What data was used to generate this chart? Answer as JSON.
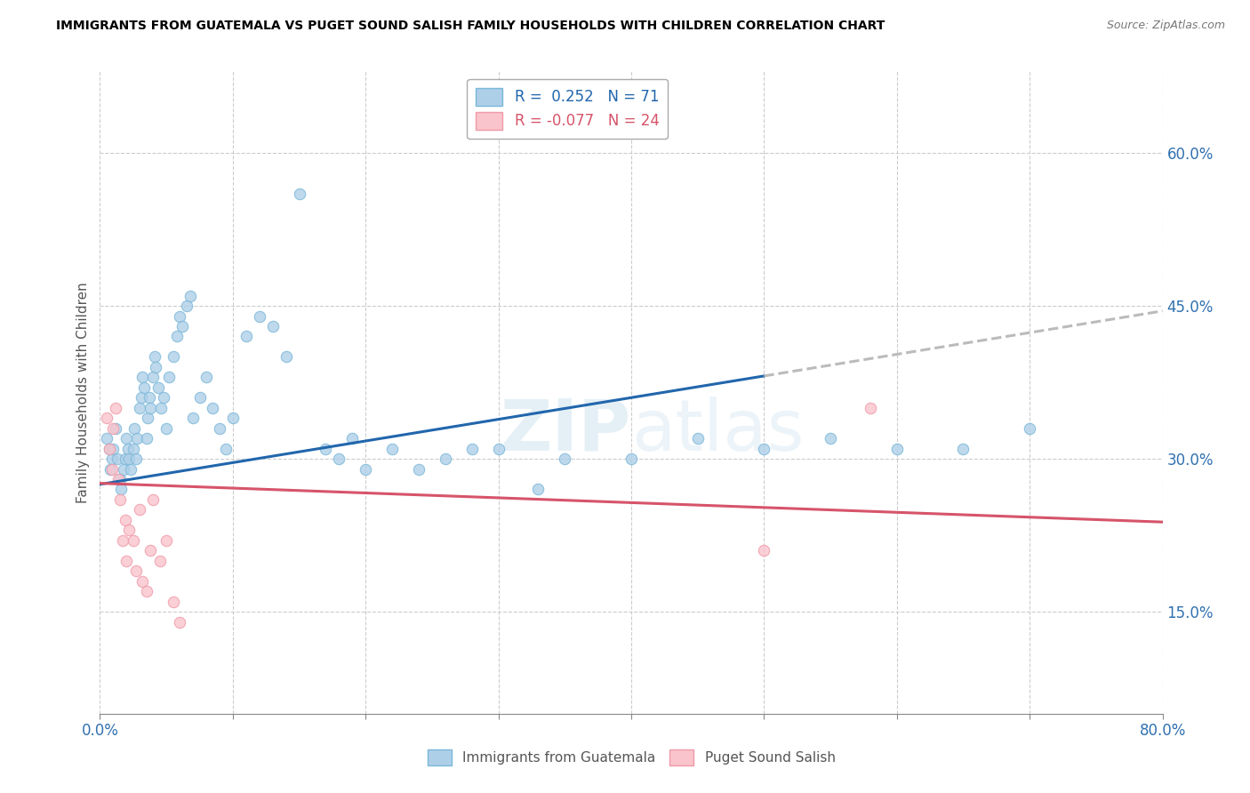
{
  "title": "IMMIGRANTS FROM GUATEMALA VS PUGET SOUND SALISH FAMILY HOUSEHOLDS WITH CHILDREN CORRELATION CHART",
  "source": "Source: ZipAtlas.com",
  "ylabel": "Family Households with Children",
  "watermark": "ZIPatlas",
  "xlim": [
    0.0,
    0.8
  ],
  "ylim": [
    0.05,
    0.68
  ],
  "xticks": [
    0.0,
    0.1,
    0.2,
    0.3,
    0.4,
    0.5,
    0.6,
    0.7,
    0.8
  ],
  "xticklabels": [
    "0.0%",
    "",
    "",
    "",
    "",
    "",
    "",
    "",
    "80.0%"
  ],
  "yticks_right": [
    0.15,
    0.3,
    0.45,
    0.6
  ],
  "ytick_right_labels": [
    "15.0%",
    "30.0%",
    "45.0%",
    "60.0%"
  ],
  "blue_R": 0.252,
  "blue_N": 71,
  "pink_R": -0.077,
  "pink_N": 24,
  "blue_color": "#7ab8d9",
  "blue_fill": "#aecfe8",
  "pink_color": "#f09aa8",
  "pink_fill": "#f9c4cc",
  "blue_line_color": "#2166ac",
  "pink_line_color": "#d6546a",
  "trend_line_end_color": "#bbbbbb",
  "background_color": "#ffffff",
  "grid_color": "#cccccc",
  "blue_line_solid_end": 0.5,
  "blue_scatter_x": [
    0.005,
    0.007,
    0.008,
    0.009,
    0.01,
    0.012,
    0.013,
    0.015,
    0.016,
    0.018,
    0.019,
    0.02,
    0.021,
    0.022,
    0.023,
    0.025,
    0.026,
    0.027,
    0.028,
    0.03,
    0.031,
    0.032,
    0.033,
    0.035,
    0.036,
    0.037,
    0.038,
    0.04,
    0.041,
    0.042,
    0.044,
    0.046,
    0.048,
    0.05,
    0.052,
    0.055,
    0.058,
    0.06,
    0.062,
    0.065,
    0.068,
    0.07,
    0.075,
    0.08,
    0.085,
    0.09,
    0.095,
    0.1,
    0.11,
    0.12,
    0.13,
    0.14,
    0.15,
    0.17,
    0.18,
    0.19,
    0.2,
    0.22,
    0.24,
    0.26,
    0.28,
    0.3,
    0.33,
    0.35,
    0.4,
    0.45,
    0.5,
    0.55,
    0.6,
    0.65,
    0.7
  ],
  "blue_scatter_y": [
    0.32,
    0.31,
    0.29,
    0.3,
    0.31,
    0.33,
    0.3,
    0.28,
    0.27,
    0.29,
    0.3,
    0.32,
    0.31,
    0.3,
    0.29,
    0.31,
    0.33,
    0.3,
    0.32,
    0.35,
    0.36,
    0.38,
    0.37,
    0.32,
    0.34,
    0.36,
    0.35,
    0.38,
    0.4,
    0.39,
    0.37,
    0.35,
    0.36,
    0.33,
    0.38,
    0.4,
    0.42,
    0.44,
    0.43,
    0.45,
    0.46,
    0.34,
    0.36,
    0.38,
    0.35,
    0.33,
    0.31,
    0.34,
    0.42,
    0.44,
    0.43,
    0.4,
    0.56,
    0.31,
    0.3,
    0.32,
    0.29,
    0.31,
    0.29,
    0.3,
    0.31,
    0.31,
    0.27,
    0.3,
    0.3,
    0.32,
    0.31,
    0.32,
    0.31,
    0.31,
    0.33
  ],
  "pink_scatter_x": [
    0.005,
    0.007,
    0.009,
    0.01,
    0.012,
    0.014,
    0.015,
    0.017,
    0.019,
    0.02,
    0.022,
    0.025,
    0.027,
    0.03,
    0.032,
    0.035,
    0.038,
    0.04,
    0.045,
    0.05,
    0.055,
    0.06,
    0.5,
    0.58
  ],
  "pink_scatter_y": [
    0.34,
    0.31,
    0.29,
    0.33,
    0.35,
    0.28,
    0.26,
    0.22,
    0.24,
    0.2,
    0.23,
    0.22,
    0.19,
    0.25,
    0.18,
    0.17,
    0.21,
    0.26,
    0.2,
    0.22,
    0.16,
    0.14,
    0.21,
    0.35
  ]
}
